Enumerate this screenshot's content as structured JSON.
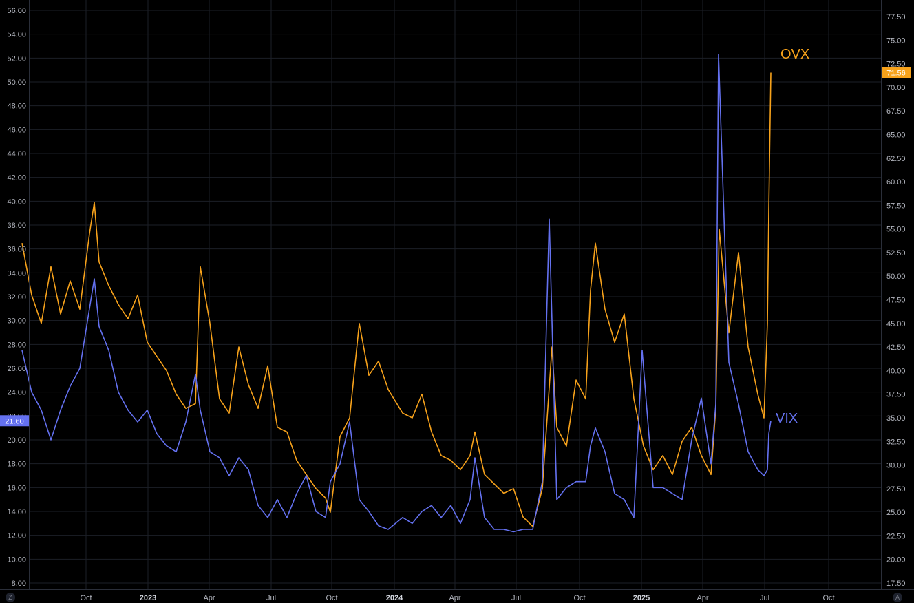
{
  "chart_data": {
    "type": "line",
    "x_ticks": [
      "Oct",
      "2023",
      "Apr",
      "Jul",
      "Oct",
      "2024",
      "Apr",
      "Jul",
      "Oct",
      "2025",
      "Apr",
      "Jul",
      "Oct"
    ],
    "x_ticks_bold": [
      "2023",
      "2024",
      "2025"
    ],
    "left_axis": {
      "ticks": [
        "8.00",
        "10.00",
        "12.00",
        "14.00",
        "16.00",
        "18.00",
        "20.00",
        "22.00",
        "24.00",
        "26.00",
        "28.00",
        "30.00",
        "32.00",
        "34.00",
        "36.00",
        "38.00",
        "40.00",
        "42.00",
        "44.00",
        "46.00",
        "48.00",
        "50.00",
        "52.00",
        "54.00",
        "56.00"
      ],
      "ylim": [
        8,
        56
      ]
    },
    "right_axis": {
      "ticks": [
        "17.50",
        "20.00",
        "22.50",
        "25.00",
        "27.50",
        "30.00",
        "32.50",
        "35.00",
        "37.50",
        "40.00",
        "42.50",
        "45.00",
        "47.50",
        "50.00",
        "52.50",
        "55.00",
        "57.50",
        "60.00",
        "62.50",
        "65.00",
        "67.50",
        "70.00",
        "72.50",
        "75.00",
        "77.50"
      ],
      "ylim": [
        17.5,
        77.5
      ]
    },
    "x_range": [
      "2022-07-01",
      "2025-12-15"
    ],
    "grid": true,
    "series": [
      {
        "name": "OVX",
        "axis": "right",
        "color": "#f7a21b",
        "last_value_label": "71.56",
        "points": [
          [
            "2022-07-01",
            53.5
          ],
          [
            "2022-07-15",
            48.0
          ],
          [
            "2022-07-29",
            45.0
          ],
          [
            "2022-08-12",
            51.0
          ],
          [
            "2022-08-26",
            46.0
          ],
          [
            "2022-09-09",
            49.5
          ],
          [
            "2022-09-23",
            46.5
          ],
          [
            "2022-10-07",
            54.5
          ],
          [
            "2022-10-14",
            57.8
          ],
          [
            "2022-10-21",
            51.5
          ],
          [
            "2022-11-04",
            49.0
          ],
          [
            "2022-11-18",
            47.0
          ],
          [
            "2022-12-02",
            45.5
          ],
          [
            "2022-12-16",
            48.0
          ],
          [
            "2022-12-30",
            43.0
          ],
          [
            "2023-01-13",
            41.5
          ],
          [
            "2023-01-27",
            40.0
          ],
          [
            "2023-02-10",
            37.5
          ],
          [
            "2023-02-24",
            36.0
          ],
          [
            "2023-03-10",
            36.5
          ],
          [
            "2023-03-17",
            51.0
          ],
          [
            "2023-03-31",
            45.0
          ],
          [
            "2023-04-14",
            37.0
          ],
          [
            "2023-04-28",
            35.5
          ],
          [
            "2023-05-12",
            42.5
          ],
          [
            "2023-05-26",
            38.5
          ],
          [
            "2023-06-09",
            36.0
          ],
          [
            "2023-06-23",
            40.5
          ],
          [
            "2023-07-07",
            34.0
          ],
          [
            "2023-07-21",
            33.5
          ],
          [
            "2023-08-04",
            30.5
          ],
          [
            "2023-08-18",
            29.0
          ],
          [
            "2023-09-01",
            27.5
          ],
          [
            "2023-09-15",
            26.5
          ],
          [
            "2023-09-22",
            25.0
          ],
          [
            "2023-10-06",
            33.0
          ],
          [
            "2023-10-20",
            35.0
          ],
          [
            "2023-11-03",
            45.0
          ],
          [
            "2023-11-17",
            39.5
          ],
          [
            "2023-12-01",
            41.0
          ],
          [
            "2023-12-15",
            38.0
          ],
          [
            "2024-01-05",
            35.5
          ],
          [
            "2024-01-19",
            35.0
          ],
          [
            "2024-02-02",
            37.5
          ],
          [
            "2024-02-16",
            33.5
          ],
          [
            "2024-03-01",
            31.0
          ],
          [
            "2024-03-15",
            30.5
          ],
          [
            "2024-03-29",
            29.5
          ],
          [
            "2024-04-12",
            31.0
          ],
          [
            "2024-04-19",
            33.5
          ],
          [
            "2024-05-03",
            29.0
          ],
          [
            "2024-05-17",
            28.0
          ],
          [
            "2024-05-31",
            27.0
          ],
          [
            "2024-06-14",
            27.5
          ],
          [
            "2024-06-28",
            24.5
          ],
          [
            "2024-07-12",
            23.5
          ],
          [
            "2024-07-26",
            27.5
          ],
          [
            "2024-08-09",
            42.5
          ],
          [
            "2024-08-16",
            34.0
          ],
          [
            "2024-08-30",
            32.0
          ],
          [
            "2024-09-13",
            39.0
          ],
          [
            "2024-09-27",
            37.0
          ],
          [
            "2024-10-04",
            48.5
          ],
          [
            "2024-10-11",
            53.5
          ],
          [
            "2024-10-25",
            46.5
          ],
          [
            "2024-11-08",
            43.0
          ],
          [
            "2024-11-22",
            46.0
          ],
          [
            "2024-12-06",
            37.0
          ],
          [
            "2024-12-20",
            32.0
          ],
          [
            "2025-01-03",
            29.5
          ],
          [
            "2025-01-17",
            31.0
          ],
          [
            "2025-01-31",
            29.0
          ],
          [
            "2025-02-14",
            32.5
          ],
          [
            "2025-02-28",
            34.0
          ],
          [
            "2025-03-14",
            31.0
          ],
          [
            "2025-03-28",
            29.0
          ],
          [
            "2025-04-04",
            36.0
          ],
          [
            "2025-04-09",
            55.0
          ],
          [
            "2025-04-23",
            44.0
          ],
          [
            "2025-05-07",
            52.5
          ],
          [
            "2025-05-21",
            42.5
          ],
          [
            "2025-06-04",
            37.5
          ],
          [
            "2025-06-13",
            35.0
          ],
          [
            "2025-06-18",
            45.0
          ],
          [
            "2025-06-20",
            57.0
          ],
          [
            "2025-06-23",
            71.56
          ]
        ]
      },
      {
        "name": "VIX",
        "axis": "left",
        "color": "#6471f0",
        "last_value_label": "21.60",
        "points": [
          [
            "2022-07-01",
            27.5
          ],
          [
            "2022-07-15",
            24.0
          ],
          [
            "2022-07-29",
            22.5
          ],
          [
            "2022-08-12",
            20.0
          ],
          [
            "2022-08-26",
            22.5
          ],
          [
            "2022-09-09",
            24.5
          ],
          [
            "2022-09-23",
            26.0
          ],
          [
            "2022-10-07",
            31.0
          ],
          [
            "2022-10-14",
            33.5
          ],
          [
            "2022-10-21",
            29.5
          ],
          [
            "2022-11-04",
            27.5
          ],
          [
            "2022-11-18",
            24.0
          ],
          [
            "2022-12-02",
            22.5
          ],
          [
            "2022-12-16",
            21.5
          ],
          [
            "2022-12-30",
            22.5
          ],
          [
            "2023-01-13",
            20.5
          ],
          [
            "2023-01-27",
            19.5
          ],
          [
            "2023-02-10",
            19.0
          ],
          [
            "2023-02-24",
            21.5
          ],
          [
            "2023-03-10",
            25.5
          ],
          [
            "2023-03-17",
            22.5
          ],
          [
            "2023-03-31",
            19.0
          ],
          [
            "2023-04-14",
            18.5
          ],
          [
            "2023-04-28",
            17.0
          ],
          [
            "2023-05-12",
            18.5
          ],
          [
            "2023-05-26",
            17.5
          ],
          [
            "2023-06-09",
            14.5
          ],
          [
            "2023-06-23",
            13.5
          ],
          [
            "2023-07-07",
            15.0
          ],
          [
            "2023-07-21",
            13.5
          ],
          [
            "2023-08-04",
            15.5
          ],
          [
            "2023-08-18",
            17.0
          ],
          [
            "2023-09-01",
            14.0
          ],
          [
            "2023-09-15",
            13.5
          ],
          [
            "2023-09-22",
            16.5
          ],
          [
            "2023-10-06",
            18.0
          ],
          [
            "2023-10-20",
            21.5
          ],
          [
            "2023-11-03",
            15.0
          ],
          [
            "2023-11-17",
            14.0
          ],
          [
            "2023-12-01",
            12.8
          ],
          [
            "2023-12-15",
            12.5
          ],
          [
            "2024-01-05",
            13.5
          ],
          [
            "2024-01-19",
            13.0
          ],
          [
            "2024-02-02",
            14.0
          ],
          [
            "2024-02-16",
            14.5
          ],
          [
            "2024-03-01",
            13.5
          ],
          [
            "2024-03-15",
            14.5
          ],
          [
            "2024-03-29",
            13.0
          ],
          [
            "2024-04-12",
            15.0
          ],
          [
            "2024-04-19",
            18.5
          ],
          [
            "2024-05-03",
            13.5
          ],
          [
            "2024-05-17",
            12.5
          ],
          [
            "2024-05-31",
            12.5
          ],
          [
            "2024-06-14",
            12.3
          ],
          [
            "2024-06-28",
            12.5
          ],
          [
            "2024-07-12",
            12.5
          ],
          [
            "2024-07-26",
            16.5
          ],
          [
            "2024-08-05",
            38.5
          ],
          [
            "2024-08-16",
            15.0
          ],
          [
            "2024-08-30",
            16.0
          ],
          [
            "2024-09-13",
            16.5
          ],
          [
            "2024-09-27",
            16.5
          ],
          [
            "2024-10-04",
            19.5
          ],
          [
            "2024-10-11",
            21.0
          ],
          [
            "2024-10-25",
            19.0
          ],
          [
            "2024-11-08",
            15.5
          ],
          [
            "2024-11-22",
            15.0
          ],
          [
            "2024-12-06",
            13.5
          ],
          [
            "2024-12-18",
            27.5
          ],
          [
            "2025-01-03",
            16.0
          ],
          [
            "2025-01-17",
            16.0
          ],
          [
            "2025-01-31",
            15.5
          ],
          [
            "2025-02-14",
            15.0
          ],
          [
            "2025-02-28",
            20.0
          ],
          [
            "2025-03-14",
            23.5
          ],
          [
            "2025-03-28",
            18.0
          ],
          [
            "2025-04-04",
            23.0
          ],
          [
            "2025-04-08",
            52.3
          ],
          [
            "2025-04-23",
            26.5
          ],
          [
            "2025-05-07",
            23.0
          ],
          [
            "2025-05-21",
            19.0
          ],
          [
            "2025-06-04",
            17.5
          ],
          [
            "2025-06-13",
            17.0
          ],
          [
            "2025-06-18",
            17.5
          ],
          [
            "2025-06-20",
            20.5
          ],
          [
            "2025-06-23",
            21.6
          ]
        ]
      }
    ]
  },
  "corner_left": "Z",
  "corner_right": "A"
}
